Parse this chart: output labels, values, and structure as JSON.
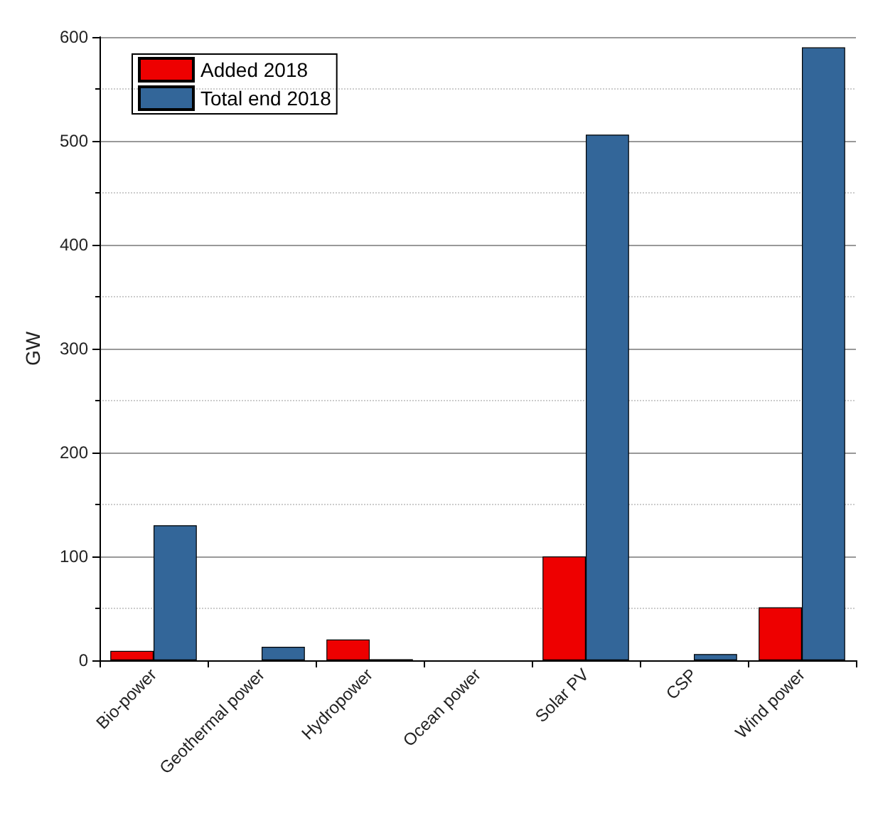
{
  "chart_data": {
    "type": "bar",
    "ylabel": "GW",
    "categories": [
      "Bio-power",
      "Geothermal power",
      "Hydropower",
      "Ocean power",
      "Solar PV",
      "CSP",
      "Wind power"
    ],
    "series": [
      {
        "name": "Added 2018",
        "color": "#ee0000",
        "values": [
          9,
          0,
          20,
          0,
          100,
          0,
          51
        ]
      },
      {
        "name": "Total end 2018",
        "color": "#336699",
        "values": [
          130,
          13,
          1,
          0,
          506,
          6,
          590
        ]
      }
    ],
    "ylim": [
      0,
      600
    ],
    "yticks": [
      0,
      100,
      200,
      300,
      400,
      500,
      600
    ],
    "grid": true,
    "legend": "top left"
  }
}
